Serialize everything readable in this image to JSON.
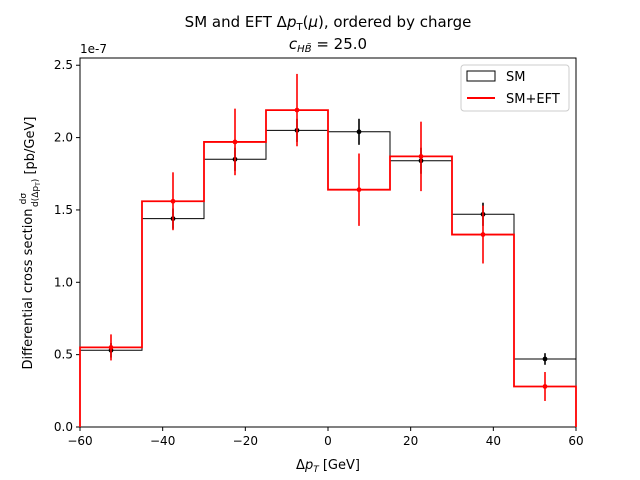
{
  "chart_data": {
    "type": "step-histogram",
    "title_line1": "SM and EFT Δpₜ(μ), ordered by charge",
    "title_line2": "c_{HB̃} = 25.0",
    "xlabel": "Δp_T [GeV]",
    "ylabel": "Differential cross section dσ/d(Δp_T) [pb/GeV]",
    "y_offset_label": "1e-7",
    "xlim": [
      -60,
      60
    ],
    "ylim": [
      0,
      2.55
    ],
    "x_ticks": [
      -60,
      -40,
      -20,
      0,
      20,
      40,
      60
    ],
    "y_ticks": [
      0.0,
      0.5,
      1.0,
      1.5,
      2.0,
      2.5
    ],
    "bin_edges": [
      -60,
      -45,
      -30,
      -15,
      0,
      15,
      30,
      45,
      60
    ],
    "legend_position": "top-right",
    "series": [
      {
        "name": "SM",
        "color": "#000000",
        "legend_style": "box",
        "values": [
          0.53,
          1.44,
          1.85,
          2.05,
          2.04,
          1.84,
          1.47,
          0.47
        ],
        "points_x": [
          -52.5,
          -37.5,
          -22.5,
          -7.5,
          7.5,
          22.5,
          37.5,
          52.5
        ],
        "errors": [
          0.05,
          0.07,
          0.08,
          0.08,
          0.09,
          0.09,
          0.08,
          0.04
        ]
      },
      {
        "name": "SM+EFT",
        "color": "#ff0000",
        "legend_style": "line",
        "values": [
          0.55,
          1.56,
          1.97,
          2.19,
          1.64,
          1.87,
          1.33,
          0.28
        ],
        "points_x": [
          -52.5,
          -37.5,
          -22.5,
          -7.5,
          7.5,
          22.5,
          37.5,
          52.5
        ],
        "errors": [
          0.09,
          0.2,
          0.23,
          0.25,
          0.25,
          0.24,
          0.2,
          0.1
        ]
      }
    ]
  }
}
